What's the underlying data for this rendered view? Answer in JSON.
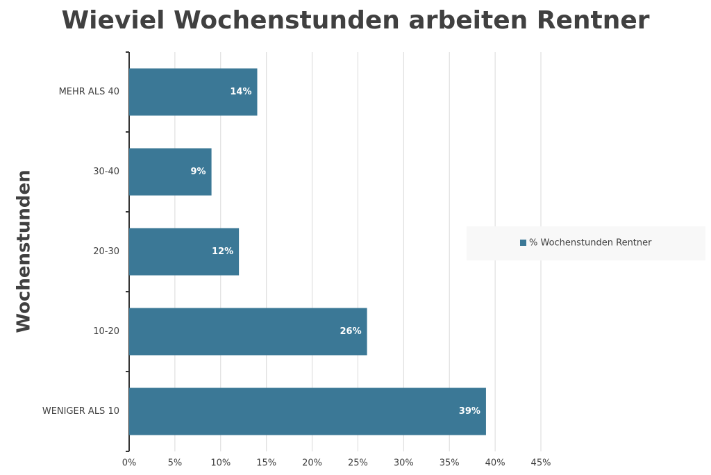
{
  "chart_data": {
    "type": "hbar",
    "title": "Wieviel Wochenstunden arbeiten Rentner",
    "y_label": "Wochenstunden",
    "categories": [
      "MEHR ALS 40",
      "30-40",
      "20-30",
      "10-20",
      "WENIGER ALS 10"
    ],
    "series": [
      {
        "name": "% Wochenstunden Rentner",
        "color": "#3b7896",
        "values": [
          14,
          9,
          12,
          26,
          39
        ],
        "value_labels": [
          "14%",
          "9%",
          "12%",
          "26%",
          "39%"
        ]
      }
    ],
    "xlim": [
      0,
      45
    ],
    "xticks": [
      {
        "value": 0,
        "label": "0%"
      },
      {
        "value": 5,
        "label": "5%"
      },
      {
        "value": 10,
        "label": "10%"
      },
      {
        "value": 15,
        "label": "15%"
      },
      {
        "value": 20,
        "label": "20%"
      },
      {
        "value": 25,
        "label": "25%"
      },
      {
        "value": 30,
        "label": "30%"
      },
      {
        "value": 35,
        "label": "35%"
      },
      {
        "value": 40,
        "label": "40%"
      },
      {
        "value": 45,
        "label": "45%"
      }
    ],
    "grid": true,
    "legend": "right"
  }
}
